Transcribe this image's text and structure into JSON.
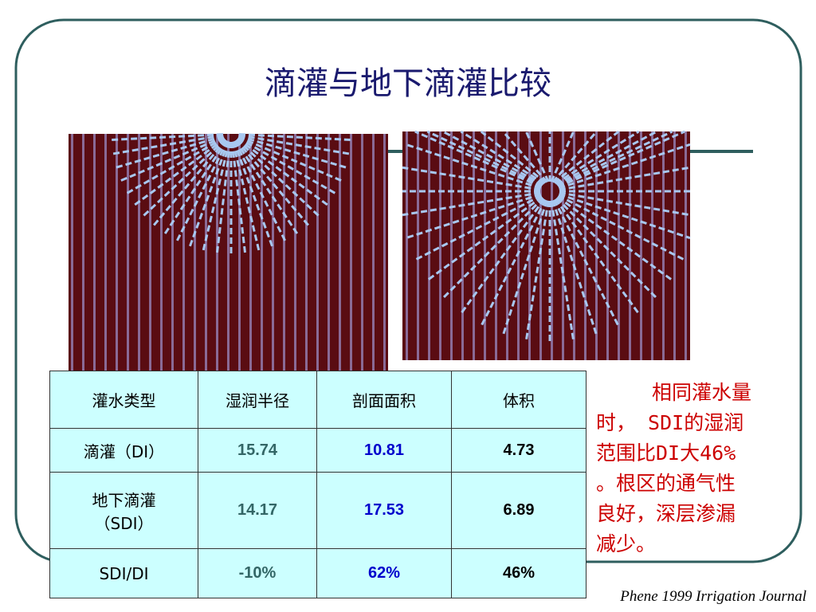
{
  "header": {
    "title": "滴灌与地下滴灌比较"
  },
  "table": {
    "rows": [
      [
        "灌水类型",
        "湿润半径",
        "剖面面积",
        "体积"
      ],
      [
        "滴灌（DI）",
        "15.74",
        "10.81",
        "4.73"
      ],
      [
        "地下滴灌\n（SDI）",
        "14.17",
        "17.53",
        "6.89"
      ],
      [
        "SDI/DI",
        "-10%",
        "62%",
        "46%"
      ]
    ]
  },
  "note": {
    "lines": [
      "相同灌水量",
      "时， SDI的湿润",
      "范围比DI大46%",
      "。根区的通气性",
      "良好，深层渗漏",
      "减少。"
    ]
  },
  "citation": "Phene 1999 Irrigation Journal"
}
